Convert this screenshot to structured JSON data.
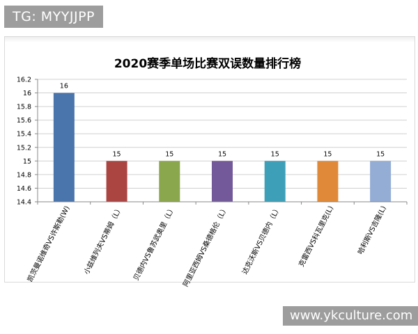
{
  "watermark_top": "TG: MYYJJPP",
  "watermark_bottom": "www.ykculture.com",
  "chart_data": {
    "type": "bar",
    "title": "2020赛季单场比赛双误数量排行榜",
    "categories": [
      "凯茨曼诺维奇VS许斯勒(W)",
      "小兹维列夫VS蒂姆（L）",
      "贝德内VS鲁苏武奥里（L）",
      "阿里亚西姆VS桑德格伦（L）",
      "达克沃斯VS贝德内（L）",
      "克雷西VS科瓦里克(L)",
      "哈利斯VS吉隆(L)"
    ],
    "values": [
      16,
      15,
      15,
      15,
      15,
      15,
      15
    ],
    "value_labels": [
      "16",
      "15",
      "15",
      "15",
      "15",
      "15",
      "15"
    ],
    "colors": [
      "#4A74AC",
      "#AB4542",
      "#8BA74E",
      "#735999",
      "#3D9FB8",
      "#E08A39",
      "#94ADD5"
    ],
    "ylim": [
      14.4,
      16.2
    ],
    "yticks": [
      "14.4",
      "14.6",
      "14.8",
      "15",
      "15.2",
      "15.4",
      "15.6",
      "15.8",
      "16",
      "16.2"
    ],
    "ytick_values": [
      14.4,
      14.6,
      14.8,
      15,
      15.2,
      15.4,
      15.6,
      15.8,
      16,
      16.2
    ],
    "grid": true,
    "xlabel": "",
    "ylabel": ""
  }
}
